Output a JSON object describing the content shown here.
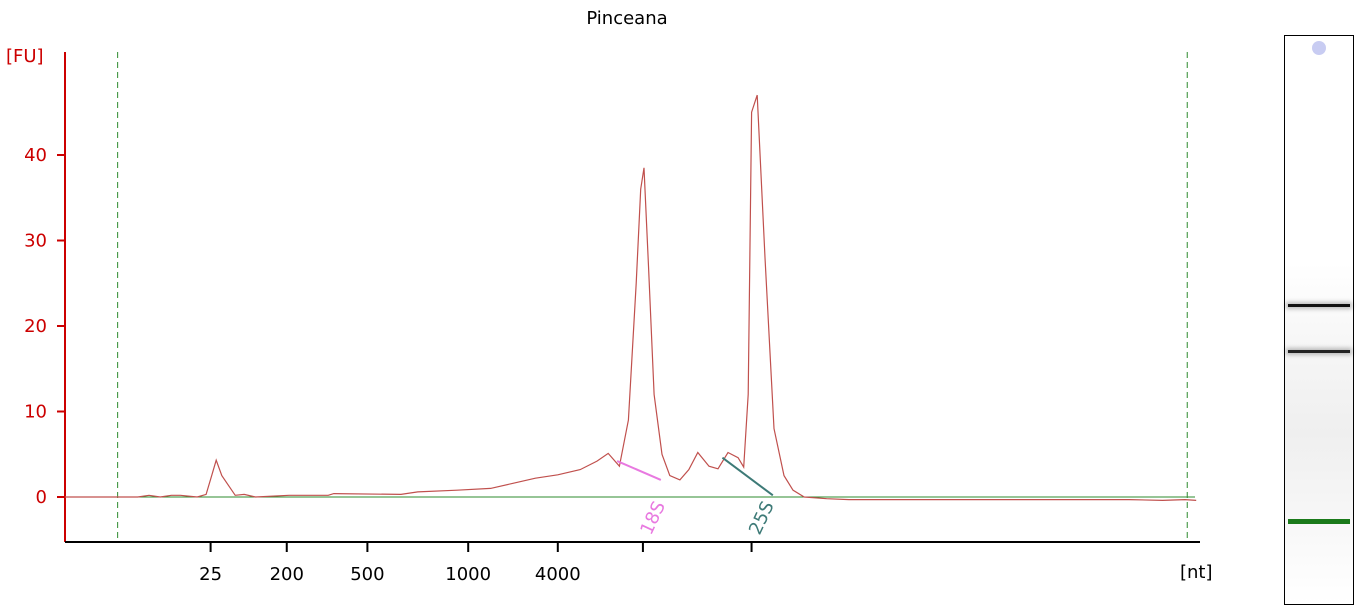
{
  "chart_data": {
    "type": "line",
    "title": "Pinceana",
    "ylabel": "[FU]",
    "xlabel": "[nt]",
    "ylim": [
      -5.5,
      52
    ],
    "yticks": [
      "0",
      "10",
      "20",
      "30",
      "40"
    ],
    "ytick_values": [
      0,
      10,
      20,
      30,
      40
    ],
    "xticks": [
      "25",
      "200",
      "500",
      "1000",
      "4000"
    ],
    "xlim": [
      0,
      100
    ],
    "xtick_positions": [
      13,
      19.8,
      27,
      36,
      44
    ],
    "markers": [
      {
        "name": "18S",
        "x": 51.6,
        "color": "#e879e0"
      },
      {
        "name": "25S",
        "x": 61.3,
        "color": "#3d7a77"
      }
    ],
    "region_bounds": [
      4.7,
      100.2
    ],
    "series": [
      {
        "color": "#c0504d",
        "x": [
          0,
          5,
          6.5,
          7.5,
          8.5,
          9.5,
          10.3,
          11.8,
          12.6,
          13.1,
          13.5,
          14,
          15.2,
          16,
          17,
          20,
          23.5,
          24,
          30,
          31.5,
          35,
          38,
          40,
          42,
          44,
          46,
          47.5,
          48.5,
          49.5,
          50.3,
          51,
          51.4,
          51.7,
          52.1,
          52.6,
          53.3,
          54,
          54.9,
          55.7,
          56.5,
          57.5,
          58.3,
          59.2,
          60.1,
          60.6,
          61,
          61.3,
          61.8,
          62.5,
          63.3,
          64.2,
          65,
          66,
          68,
          70,
          75,
          80,
          85,
          90,
          95,
          98,
          100,
          101
        ],
        "y": [
          0,
          0,
          0,
          0.2,
          0,
          0.2,
          0.2,
          0,
          0.3,
          2.5,
          4.3,
          2.5,
          0.2,
          0.3,
          0,
          0.2,
          0.2,
          0.4,
          0.3,
          0.6,
          0.8,
          1.0,
          1.6,
          2.2,
          2.6,
          3.2,
          4.2,
          5.1,
          3.6,
          9,
          25,
          36,
          38.5,
          27,
          12,
          5,
          2.5,
          2,
          3.2,
          5.2,
          3.6,
          3.3,
          5.2,
          4.6,
          3.5,
          12,
          45,
          47,
          28,
          8,
          2.5,
          0.8,
          0,
          -0.2,
          -0.3,
          -0.3,
          -0.3,
          -0.3,
          -0.3,
          -0.3,
          -0.4,
          -0.3,
          -0.4
        ]
      }
    ],
    "baseline_color": "#2e8b2e",
    "region_line_color": "#2e8b2e",
    "axis_color": "#cc0000"
  },
  "gel": {
    "border_color": "#000000",
    "marker_dot_color": "#c8ccf2",
    "bands": [
      {
        "name": "band-25s",
        "position": 0.47,
        "color": "#111111",
        "thickness": 3
      },
      {
        "name": "band-18s",
        "position": 0.551,
        "color": "#222222",
        "thickness": 3
      },
      {
        "name": "band-lower-marker",
        "position": 0.848,
        "color": "#1a7a1a",
        "thickness": 5
      }
    ]
  }
}
